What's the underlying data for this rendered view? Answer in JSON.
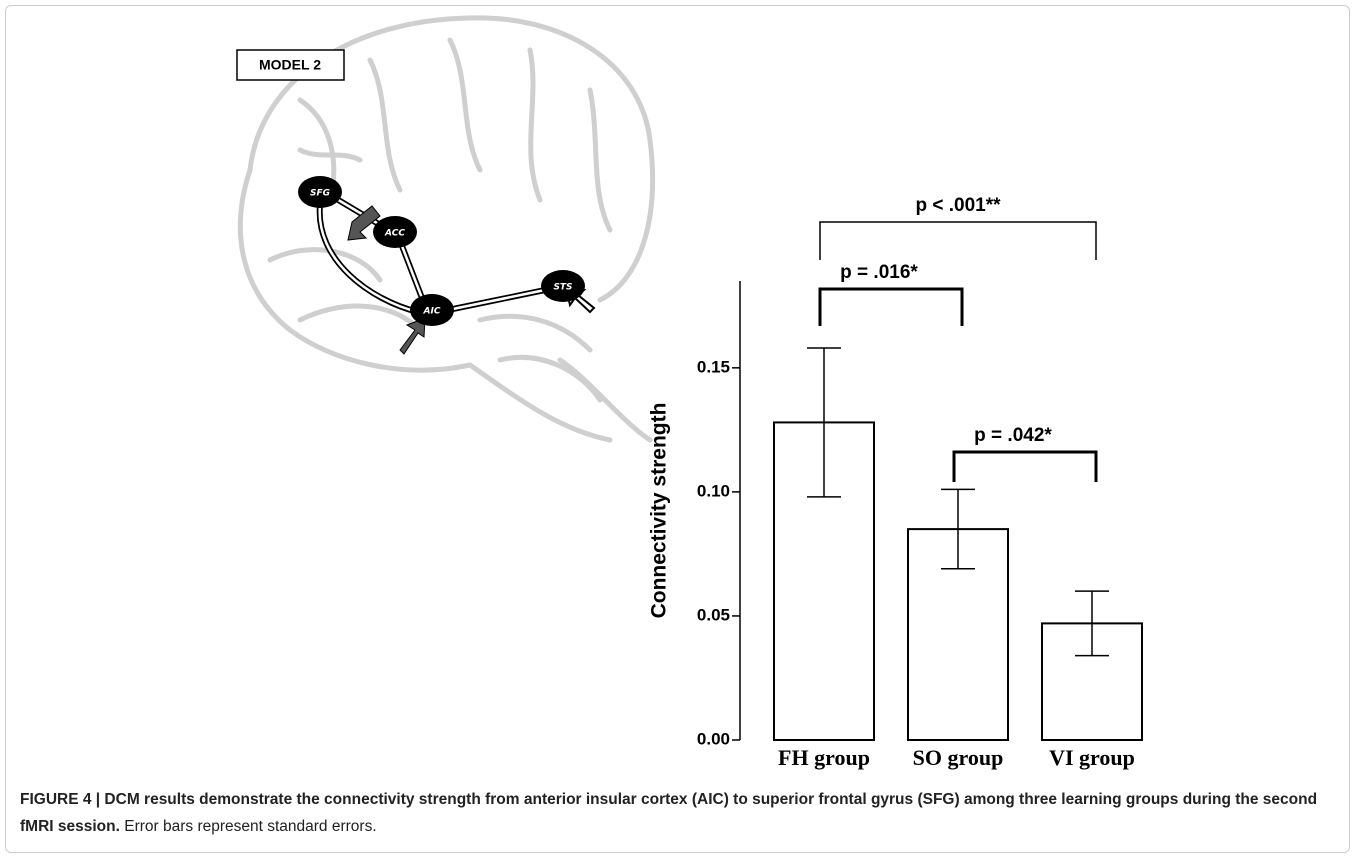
{
  "chart_data": {
    "type": "bar",
    "y_label": "Connectivity strength",
    "categories": [
      "FH group",
      "SO group",
      "VI group"
    ],
    "values": [
      0.128,
      0.085,
      0.047
    ],
    "errors": [
      0.03,
      0.016,
      0.013
    ],
    "color": "#ffffff",
    "ylim": [
      0,
      0.185
    ],
    "yticks": [
      {
        "value": 0,
        "label": "0.00"
      },
      0.05,
      {
        "value": 0.1,
        "label": "0.10"
      },
      0.15
    ],
    "annotations": [
      "p < .001**",
      "p = .016*",
      "p = .042*"
    ]
  },
  "diagram": {
    "label": "MODEL 2",
    "nodes": [
      "SFG",
      "ACC",
      "AIC",
      "STS"
    ]
  },
  "caption": {
    "title": "FIGURE 4 | DCM results demonstrate the connectivity strength from anterior insular cortex (AIC) to superior frontal gyrus (SFG) among three learning groups during the second fMRI session.",
    "text": "Error bars represent standard errors."
  }
}
